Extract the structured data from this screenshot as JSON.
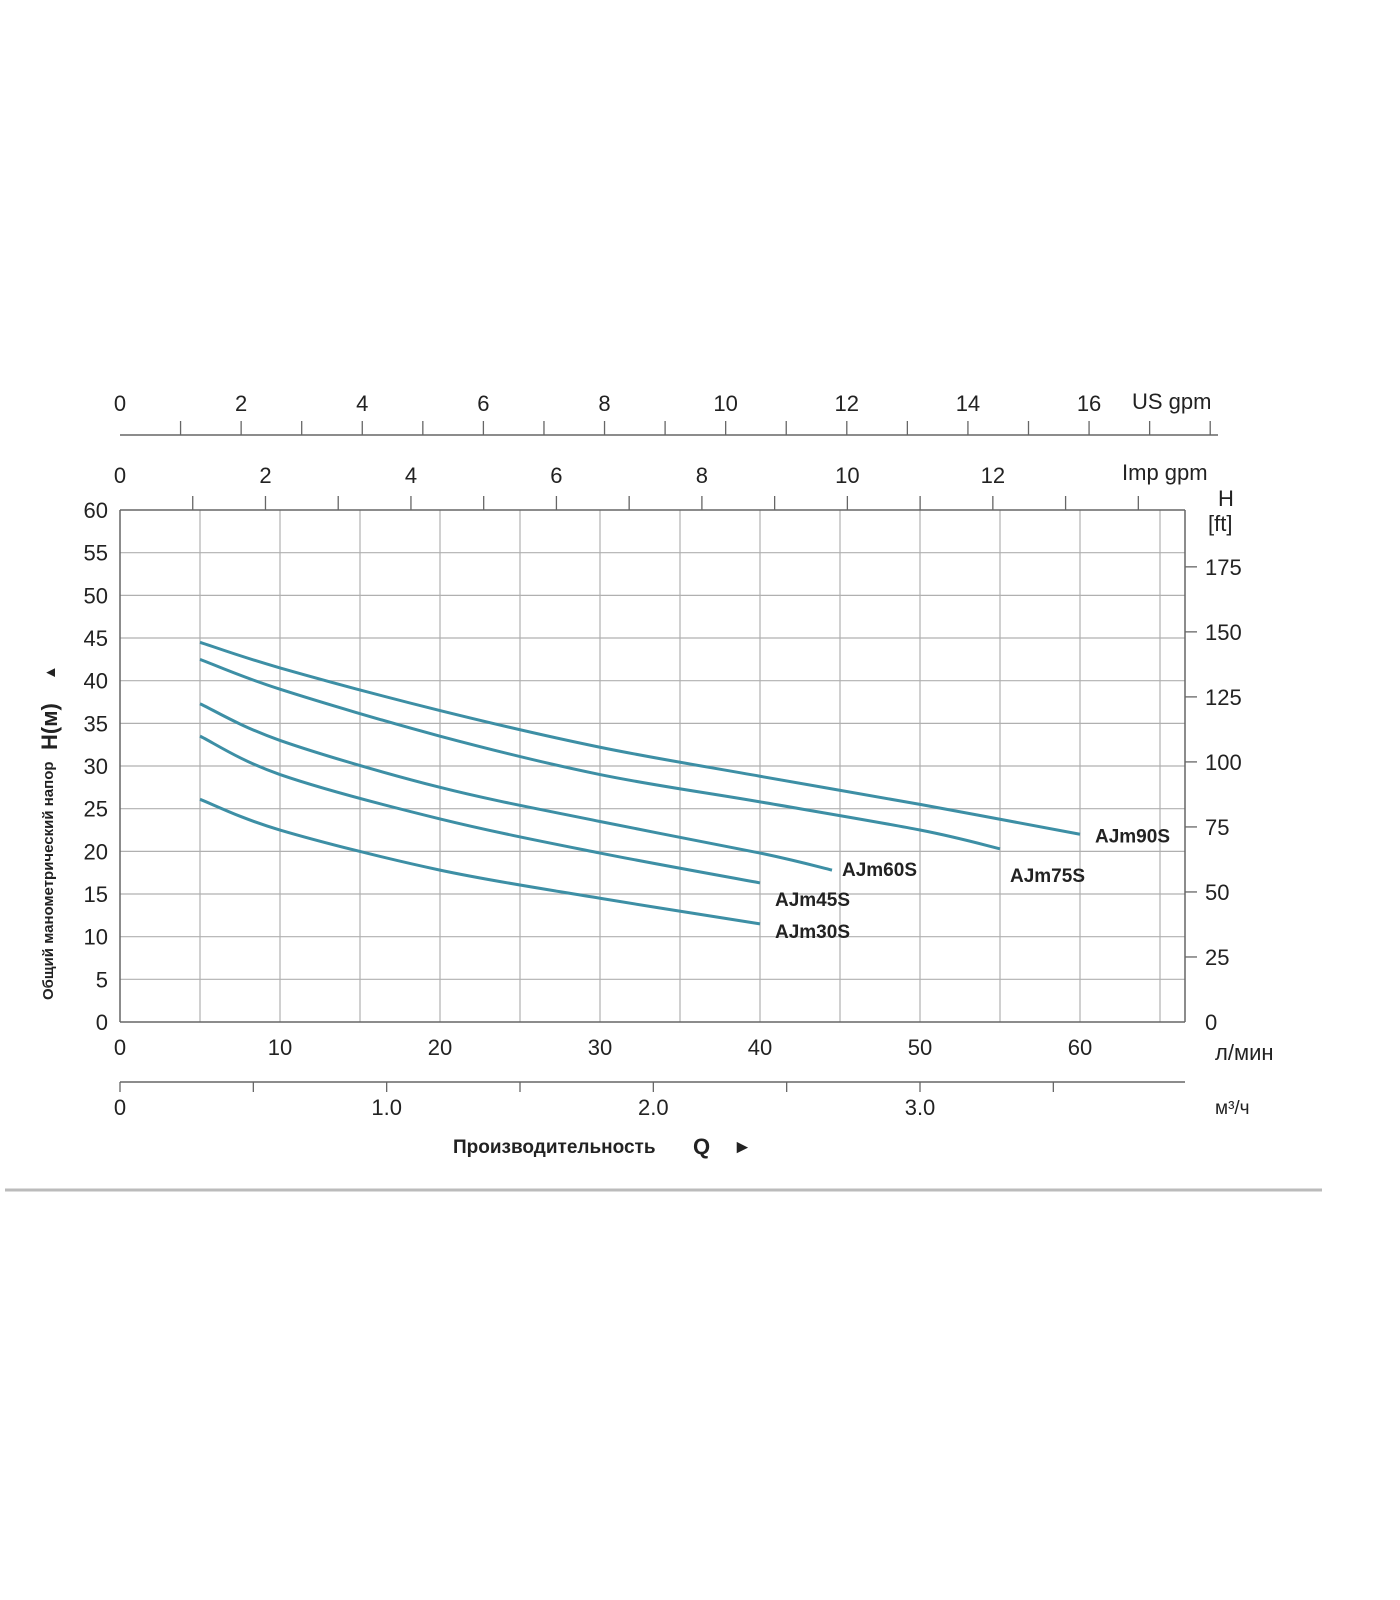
{
  "chart_data": {
    "type": "line",
    "series_color": "#3d8fa5",
    "grid": true,
    "x_primary": {
      "unit": "л/мин",
      "range": [
        0,
        66
      ],
      "ticks": [
        "0",
        "10",
        "20",
        "30",
        "40",
        "50",
        "60"
      ]
    },
    "x_m3h": {
      "unit": "м³/ч",
      "ticks": [
        "0",
        "1.0",
        "2.0",
        "3.0"
      ]
    },
    "x_imp_gpm": {
      "unit": "Imp gpm",
      "ticks": [
        "0",
        "2",
        "4",
        "6",
        "8",
        "10",
        "12"
      ]
    },
    "x_us_gpm": {
      "unit": "US gpm",
      "ticks": [
        "0",
        "2",
        "4",
        "6",
        "8",
        "10",
        "12",
        "14",
        "16"
      ]
    },
    "y_left": {
      "range": [
        0,
        60
      ],
      "ticks": [
        "0",
        "5",
        "10",
        "15",
        "20",
        "25",
        "30",
        "35",
        "40",
        "45",
        "50",
        "55",
        "60"
      ],
      "title_prefix": "Общий манометрический напор",
      "title_symbol": "H(м)",
      "title_arrow": "▲"
    },
    "y_right": {
      "unit_line1": "H",
      "unit_line2": "[ft]",
      "ticks": [
        "0",
        "25",
        "50",
        "75",
        "100",
        "125",
        "150",
        "175"
      ]
    },
    "x_title": {
      "text": "Производительность",
      "symbol": "Q",
      "arrow": "►"
    },
    "series": [
      {
        "name": "AJm90S",
        "x": [
          5,
          10,
          20,
          30,
          40,
          50,
          60
        ],
        "y": [
          44.5,
          41.5,
          36.5,
          32.2,
          28.8,
          25.5,
          22.0
        ]
      },
      {
        "name": "AJm75S",
        "x": [
          5,
          10,
          20,
          30,
          40,
          50,
          55
        ],
        "y": [
          42.5,
          39.0,
          33.5,
          29.0,
          25.8,
          22.5,
          20.3
        ]
      },
      {
        "name": "AJm60S",
        "x": [
          5,
          10,
          20,
          30,
          40,
          44.5
        ],
        "y": [
          37.3,
          33.0,
          27.5,
          23.5,
          19.8,
          17.8
        ]
      },
      {
        "name": "AJm45S",
        "x": [
          5,
          10,
          20,
          30,
          40
        ],
        "y": [
          33.5,
          29.0,
          23.8,
          19.8,
          16.3
        ]
      },
      {
        "name": "AJm30S",
        "x": [
          5,
          10,
          20,
          30,
          40
        ],
        "y": [
          26.1,
          22.5,
          17.8,
          14.5,
          11.5
        ]
      }
    ]
  }
}
